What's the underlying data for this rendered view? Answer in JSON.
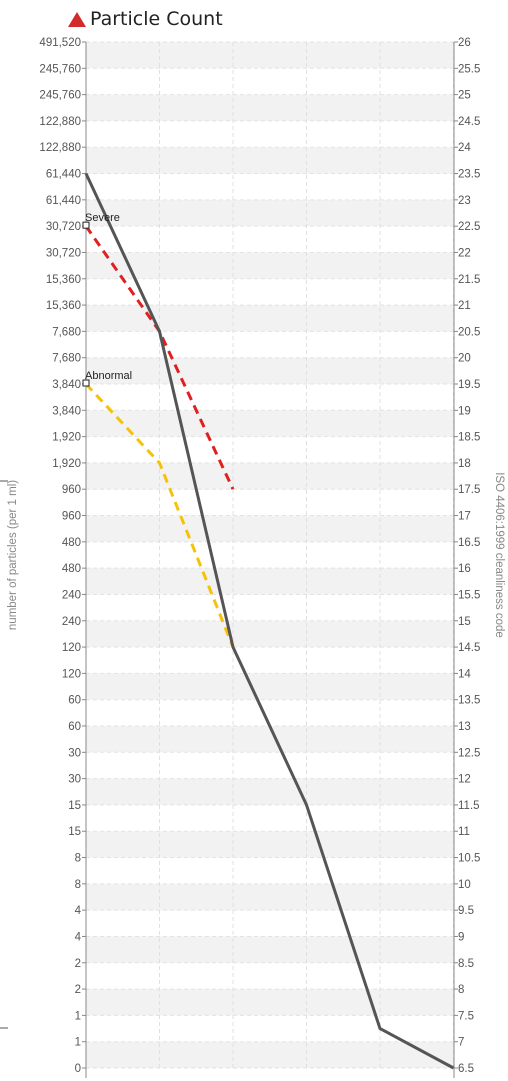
{
  "chart_data": {
    "type": "line",
    "title": "Particle Count",
    "ylabel": "number of particles (per 1 ml)",
    "y2label": "ISO 4406:1999 cleanliness code",
    "left_tick_labels": [
      "491,520",
      "245,760",
      "245,760",
      "122,880",
      "122,880",
      "61,440",
      "61,440",
      "30,720",
      "30,720",
      "15,360",
      "15,360",
      "7,680",
      "7,680",
      "3,840",
      "3,840",
      "1,920",
      "1,920",
      "960",
      "960",
      "480",
      "480",
      "240",
      "240",
      "120",
      "120",
      "60",
      "60",
      "30",
      "30",
      "15",
      "15",
      "8",
      "8",
      "4",
      "4",
      "2",
      "2",
      "1",
      "1",
      "0"
    ],
    "right_tick_labels": [
      "26",
      "25.5",
      "25",
      "24.5",
      "24",
      "23.5",
      "23",
      "22.5",
      "22",
      "21.5",
      "21",
      "20.5",
      "20",
      "19.5",
      "19",
      "18.5",
      "18",
      "17.5",
      "17",
      "16.5",
      "16",
      "15.5",
      "15",
      "14.5",
      "14",
      "13.5",
      "13",
      "12.5",
      "12",
      "11.5",
      "11",
      "10.5",
      "10",
      "9.5",
      "9",
      "8.5",
      "8",
      "7.5",
      "7",
      "6.5"
    ],
    "y2lim": [
      6.5,
      26
    ],
    "x": [
      0,
      1,
      2,
      3,
      4,
      5
    ],
    "grid": true,
    "series": [
      {
        "role": "measured",
        "color": "#555555",
        "dash": false,
        "points": [
          [
            0,
            23.5
          ],
          [
            1,
            20.5
          ],
          [
            2,
            14.5
          ],
          [
            3,
            11.5
          ],
          [
            4,
            7.25
          ],
          [
            5,
            6.5
          ]
        ]
      },
      {
        "name": "Severe",
        "color": "#e02020",
        "dash": true,
        "points": [
          [
            0,
            22.5
          ],
          [
            1,
            20.5
          ],
          [
            2,
            17.5
          ]
        ]
      },
      {
        "name": "Abnormal",
        "color": "#f5c20a",
        "dash": true,
        "points": [
          [
            0,
            19.5
          ],
          [
            1,
            18
          ],
          [
            2,
            14.5
          ]
        ]
      }
    ]
  }
}
